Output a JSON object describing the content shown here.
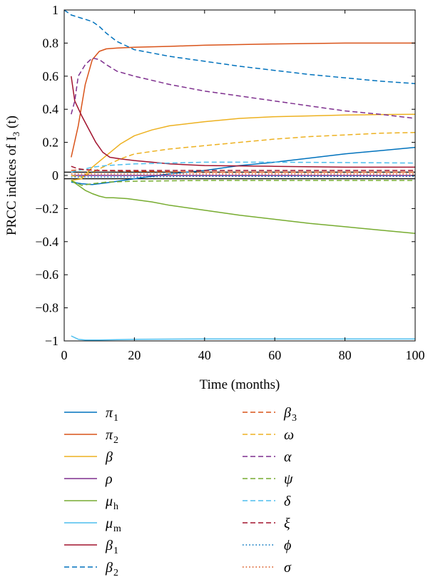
{
  "chart_data": {
    "type": "line",
    "xlabel": "Time (months)",
    "ylabel": "PRCC indices of I",
    "ylabel_sub": "3",
    "ylabel_tail": " (t)",
    "xlim": [
      0,
      100
    ],
    "ylim": [
      -1,
      1
    ],
    "xticks": [
      0,
      20,
      40,
      60,
      80,
      100
    ],
    "yticks": [
      -1,
      -0.8,
      -0.6,
      -0.4,
      -0.2,
      0,
      0.2,
      0.4,
      0.6,
      0.8,
      1
    ],
    "ytick_labels": [
      "−1",
      "−0.8",
      "−0.6",
      "−0.4",
      "−0.2",
      "0",
      "0.2",
      "0.4",
      "0.6",
      "0.8",
      "1"
    ],
    "reference_lines": [
      0.02,
      -0.02
    ],
    "series": [
      {
        "name": "π",
        "sub": "1",
        "color": "#0072BD",
        "dash": "solid",
        "x": [
          2,
          5,
          8,
          12,
          20,
          30,
          40,
          50,
          60,
          70,
          80,
          90,
          100
        ],
        "y": [
          -0.04,
          -0.05,
          -0.055,
          -0.045,
          -0.02,
          0.01,
          0.03,
          0.06,
          0.08,
          0.105,
          0.13,
          0.15,
          0.17
        ]
      },
      {
        "name": "π",
        "sub": "2",
        "color": "#D95319",
        "dash": "solid",
        "x": [
          2,
          4,
          6,
          8,
          10,
          12,
          15,
          20,
          30,
          40,
          60,
          80,
          100
        ],
        "y": [
          0.11,
          0.3,
          0.55,
          0.7,
          0.75,
          0.765,
          0.77,
          0.775,
          0.78,
          0.787,
          0.795,
          0.8,
          0.8
        ]
      },
      {
        "name": "β",
        "sub": "",
        "color": "#EDB120",
        "dash": "solid",
        "x": [
          2,
          5,
          8,
          12,
          16,
          20,
          25,
          30,
          40,
          50,
          60,
          70,
          80,
          90,
          100
        ],
        "y": [
          -0.03,
          -0.02,
          0.05,
          0.12,
          0.19,
          0.24,
          0.275,
          0.3,
          0.325,
          0.345,
          0.355,
          0.36,
          0.365,
          0.368,
          0.37
        ]
      },
      {
        "name": "ρ",
        "sub": "",
        "color": "#7E2F8E",
        "dash": "solid",
        "x": [
          2,
          100
        ],
        "y": [
          0.0,
          0.0
        ]
      },
      {
        "name": "μ",
        "sub": "h",
        "color": "#77AC30",
        "dash": "solid",
        "x": [
          2,
          4,
          6,
          8,
          10,
          12,
          14,
          18,
          25,
          30,
          40,
          50,
          60,
          70,
          80,
          90,
          100
        ],
        "y": [
          -0.03,
          -0.06,
          -0.09,
          -0.11,
          -0.125,
          -0.135,
          -0.135,
          -0.14,
          -0.16,
          -0.18,
          -0.21,
          -0.24,
          -0.265,
          -0.29,
          -0.31,
          -0.33,
          -0.35
        ]
      },
      {
        "name": "μ",
        "sub": "m",
        "color": "#4DBEEE",
        "dash": "solid",
        "x": [
          2,
          4,
          6,
          10,
          20,
          40,
          60,
          80,
          100
        ],
        "y": [
          -0.97,
          -0.99,
          -0.995,
          -0.995,
          -0.99,
          -0.988,
          -0.988,
          -0.988,
          -0.988
        ]
      },
      {
        "name": "β",
        "sub": "1",
        "color": "#A2142F",
        "dash": "solid",
        "x": [
          2,
          3,
          5,
          7,
          9,
          11,
          13,
          16,
          20,
          25,
          30,
          40,
          60,
          80,
          100
        ],
        "y": [
          0.6,
          0.45,
          0.36,
          0.28,
          0.2,
          0.14,
          0.11,
          0.1,
          0.09,
          0.08,
          0.07,
          0.06,
          0.055,
          0.05,
          0.05
        ]
      },
      {
        "name": "β",
        "sub": "2",
        "color": "#0072BD",
        "dash": "dashed",
        "x": [
          0,
          2,
          5,
          8,
          10,
          12,
          15,
          18,
          20,
          25,
          30,
          40,
          50,
          60,
          70,
          80,
          90,
          100
        ],
        "y": [
          1.0,
          0.97,
          0.95,
          0.93,
          0.9,
          0.86,
          0.81,
          0.78,
          0.76,
          0.74,
          0.72,
          0.69,
          0.66,
          0.635,
          0.61,
          0.59,
          0.57,
          0.555
        ]
      },
      {
        "name": "β",
        "sub": "3",
        "color": "#D95319",
        "dash": "dashed",
        "x": [
          2,
          5,
          10,
          20,
          40,
          60,
          80,
          100
        ],
        "y": [
          0.03,
          0.035,
          0.03,
          0.025,
          0.02,
          0.02,
          0.02,
          0.02
        ]
      },
      {
        "name": "ω",
        "sub": "",
        "color": "#EDB120",
        "dash": "dashed",
        "x": [
          2,
          5,
          8,
          12,
          16,
          20,
          30,
          40,
          50,
          60,
          70,
          80,
          90,
          100
        ],
        "y": [
          0.0,
          -0.01,
          0.02,
          0.06,
          0.1,
          0.13,
          0.16,
          0.18,
          0.2,
          0.22,
          0.235,
          0.245,
          0.255,
          0.26
        ]
      },
      {
        "name": "α",
        "sub": "",
        "color": "#7E2F8E",
        "dash": "dashed",
        "x": [
          2,
          3,
          4,
          6,
          8,
          10,
          12,
          15,
          20,
          30,
          40,
          50,
          60,
          70,
          80,
          90,
          100
        ],
        "y": [
          0.37,
          0.45,
          0.6,
          0.67,
          0.71,
          0.7,
          0.67,
          0.63,
          0.6,
          0.55,
          0.51,
          0.48,
          0.45,
          0.42,
          0.39,
          0.37,
          0.345
        ]
      },
      {
        "name": "ψ",
        "sub": "",
        "color": "#77AC30",
        "dash": "dashed",
        "x": [
          2,
          5,
          8,
          12,
          20,
          40,
          60,
          80,
          100
        ],
        "y": [
          -0.03,
          -0.06,
          -0.05,
          -0.04,
          -0.035,
          -0.03,
          -0.03,
          -0.03,
          -0.03
        ]
      },
      {
        "name": "δ",
        "sub": "",
        "color": "#4DBEEE",
        "dash": "dashed",
        "x": [
          2,
          5,
          8,
          12,
          20,
          30,
          40,
          60,
          80,
          100
        ],
        "y": [
          0.02,
          0.035,
          0.05,
          0.06,
          0.07,
          0.075,
          0.08,
          0.08,
          0.078,
          0.075
        ]
      },
      {
        "name": "ξ",
        "sub": "",
        "color": "#A2142F",
        "dash": "dashed",
        "x": [
          2,
          4,
          6,
          10,
          20,
          40,
          60,
          80,
          100
        ],
        "y": [
          0.055,
          0.04,
          0.035,
          0.03,
          0.03,
          0.03,
          0.03,
          0.03,
          0.03
        ]
      },
      {
        "name": "ϕ",
        "sub": "",
        "color": "#0072BD",
        "dash": "dotted",
        "x": [
          2,
          10,
          20,
          40,
          60,
          80,
          100
        ],
        "y": [
          -0.01,
          -0.01,
          -0.01,
          -0.005,
          -0.005,
          -0.005,
          -0.005
        ]
      },
      {
        "name": "σ",
        "sub": "",
        "color": "#D95319",
        "dash": "dotted",
        "x": [
          2,
          10,
          20,
          40,
          60,
          80,
          100
        ],
        "y": [
          0.01,
          0.01,
          0.01,
          0.01,
          0.01,
          0.01,
          0.01
        ]
      }
    ]
  }
}
